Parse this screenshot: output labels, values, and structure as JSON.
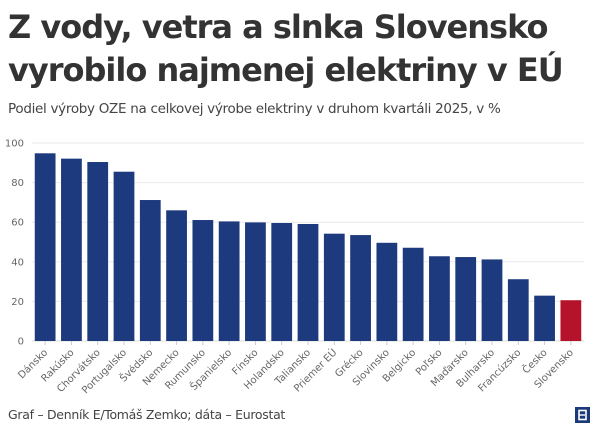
{
  "header": {
    "title_line1": "Z vody, vetra a slnka Slovensko",
    "title_line2": "vyrobilo najmenej elektriny v EÚ",
    "subtitle": "Podiel výroby OZE na celkovej výrobe elektriny v druhom kvartáli 2025, v %"
  },
  "footer": {
    "credit": "Graf – Denník E/Tomáš Zemko; dáta – Eurostat",
    "logo_letter": "E",
    "logo_icon": "denník-e-logo-icon"
  },
  "colors": {
    "default_bar": "#1d3a7e",
    "highlight_bar": "#b5122b",
    "grid": "#eaeaea"
  },
  "chart_data": {
    "type": "bar",
    "title": "Z vody, vetra a slnka Slovensko vyrobilo najmenej elektriny v EÚ",
    "subtitle": "Podiel výroby OZE na celkovej výrobe elektriny v druhom kvartáli 2025, v %",
    "xlabel": "",
    "ylabel": "",
    "ylim": [
      0,
      100
    ],
    "yticks": [
      0,
      20,
      40,
      60,
      80,
      100
    ],
    "grid": true,
    "legend": "none",
    "highlight": "Slovensko",
    "categories": [
      "Dánsko",
      "Rakúsko",
      "Chorvátsko",
      "Portugalsko",
      "Švédsko",
      "Nemecko",
      "Rumunsko",
      "Španielsko",
      "Fínsko",
      "Holandsko",
      "Taliansko",
      "Priemer EÚ",
      "Grécko",
      "Slovinsko",
      "Belgicko",
      "Poľsko",
      "Maďarsko",
      "Bulharsko",
      "Francúzsko",
      "Česko",
      "Slovensko"
    ],
    "values": [
      94.8,
      92.1,
      90.4,
      85.5,
      71.2,
      66.0,
      61.1,
      60.4,
      59.9,
      59.6,
      59.1,
      54.2,
      53.5,
      49.6,
      47.1,
      42.8,
      42.4,
      41.2,
      31.2,
      22.9,
      20.6
    ]
  }
}
